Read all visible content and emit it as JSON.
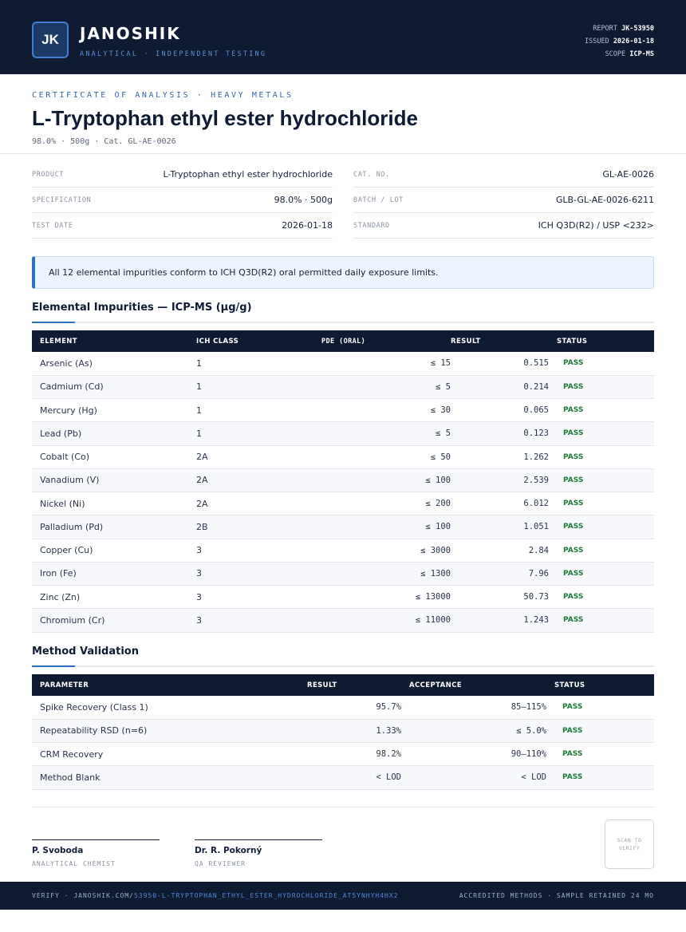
{
  "header": {
    "logo": "JK",
    "brand": "JANOSHIK",
    "brand_sub": "ANALYTICAL · INDEPENDENT TESTING",
    "report_label": "REPORT",
    "report_value": "JK-53950",
    "issued_label": "ISSUED",
    "issued_value": "2026-01-18",
    "scope_label": "SCOPE",
    "scope_value": "ICP-MS"
  },
  "doc": {
    "eyebrow": "CERTIFICATE OF ANALYSIS · HEAVY METALS",
    "title": "L-Tryptophan ethyl ester hydrochloride",
    "subline": "98.0% · 500g  ·  Cat. GL-AE-0026"
  },
  "info": {
    "left": [
      {
        "k": "PRODUCT",
        "v": "L-Tryptophan ethyl ester hydrochloride"
      },
      {
        "k": "SPECIFICATION",
        "v": "98.0% · 500g"
      },
      {
        "k": "TEST DATE",
        "v": "2026-01-18"
      }
    ],
    "right": [
      {
        "k": "CAT. NO.",
        "v": "GL-AE-0026"
      },
      {
        "k": "BATCH / LOT",
        "v": "GLB-GL-AE-0026-6211"
      },
      {
        "k": "STANDARD",
        "v": "ICH Q3D(R2) / USP <232>"
      }
    ]
  },
  "callout": "All 12 elemental impurities conform to ICH Q3D(R2) oral permitted daily exposure limits.",
  "impurities": {
    "title": "Elemental Impurities — ICP-MS (µg/g)",
    "headers": [
      "ELEMENT",
      "ICH CLASS",
      "PDE (ORAL)",
      "RESULT",
      "STATUS"
    ],
    "rows": [
      [
        "Arsenic (As)",
        "1",
        "≤ 15",
        "0.515",
        "PASS"
      ],
      [
        "Cadmium (Cd)",
        "1",
        "≤ 5",
        "0.214",
        "PASS"
      ],
      [
        "Mercury (Hg)",
        "1",
        "≤ 30",
        "0.065",
        "PASS"
      ],
      [
        "Lead (Pb)",
        "1",
        "≤ 5",
        "0.123",
        "PASS"
      ],
      [
        "Cobalt (Co)",
        "2A",
        "≤ 50",
        "1.262",
        "PASS"
      ],
      [
        "Vanadium (V)",
        "2A",
        "≤ 100",
        "2.539",
        "PASS"
      ],
      [
        "Nickel (Ni)",
        "2A",
        "≤ 200",
        "6.012",
        "PASS"
      ],
      [
        "Palladium (Pd)",
        "2B",
        "≤ 100",
        "1.051",
        "PASS"
      ],
      [
        "Copper (Cu)",
        "3",
        "≤ 3000",
        "2.84",
        "PASS"
      ],
      [
        "Iron (Fe)",
        "3",
        "≤ 1300",
        "7.96",
        "PASS"
      ],
      [
        "Zinc (Zn)",
        "3",
        "≤ 13000",
        "50.73",
        "PASS"
      ],
      [
        "Chromium (Cr)",
        "3",
        "≤ 11000",
        "1.243",
        "PASS"
      ]
    ]
  },
  "validation": {
    "title": "Method Validation",
    "headers": [
      "PARAMETER",
      "RESULT",
      "ACCEPTANCE",
      "STATUS"
    ],
    "rows": [
      [
        "Spike Recovery (Class 1)",
        "95.7%",
        "85–115%",
        "PASS"
      ],
      [
        "Repeatability RSD (n=6)",
        "1.33%",
        "≤ 5.0%",
        "PASS"
      ],
      [
        "CRM Recovery",
        "98.2%",
        "90–110%",
        "PASS"
      ],
      [
        "Method Blank",
        "< LOD",
        "< LOD",
        "PASS"
      ]
    ]
  },
  "signatures": [
    {
      "name": "P. Svoboda",
      "role": "ANALYTICAL CHEMIST"
    },
    {
      "name": "Dr. R. Pokorný",
      "role": "QA REVIEWER"
    }
  ],
  "scan_label": "SCAN TO VERIFY",
  "footer": {
    "verify_prefix": "VERIFY · JANOSHIK.COM/",
    "verify_path": "53950-L-TRYPTOPHAN_ETHYL_ESTER_HYDROCHLORIDE_AT5YNHYH4HX2",
    "right": "ACCREDITED METHODS · SAMPLE RETAINED 24 MO"
  }
}
